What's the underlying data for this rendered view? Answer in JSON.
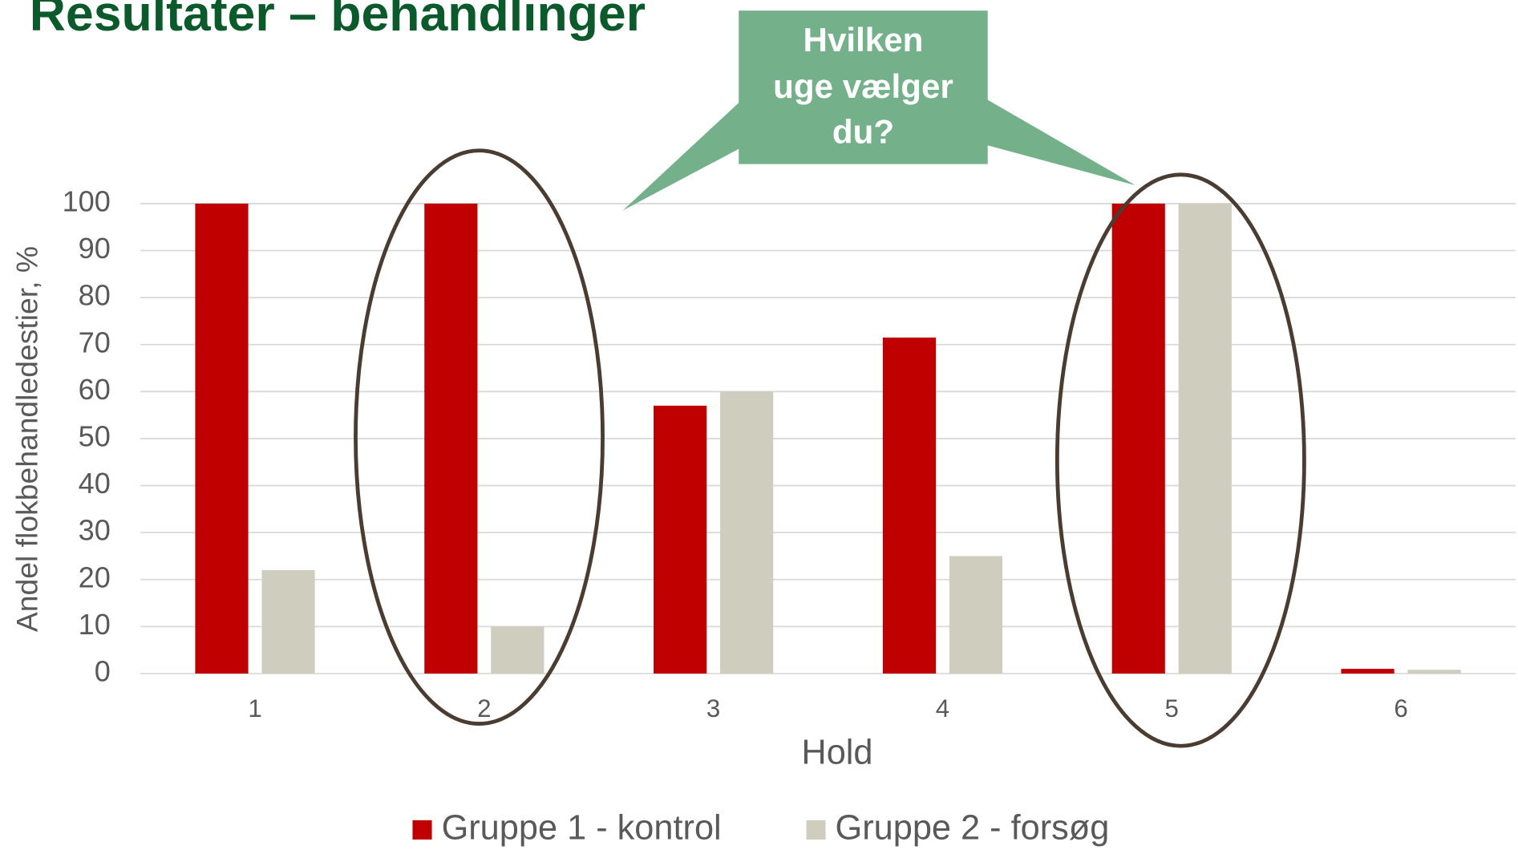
{
  "chart_data": {
    "type": "bar",
    "title": "Resultater – behandlinger",
    "annotation": [
      "Hvilken",
      "uge vælger",
      "du?"
    ],
    "xlabel": "Hold",
    "ylabel": "Andel flokbehandledestier, %",
    "categories": [
      "1",
      "2",
      "3",
      "4",
      "5",
      "6"
    ],
    "series": [
      {
        "name": "Gruppe 1 - kontrol",
        "color": "#c00000",
        "values": [
          100,
          100,
          57,
          71.5,
          100,
          1
        ]
      },
      {
        "name": "Gruppe 2 - forsøg",
        "color": "#cfcdbd",
        "values": [
          22,
          10,
          60,
          25,
          100,
          0.8
        ]
      }
    ],
    "ylim": [
      0,
      100
    ],
    "yticks": [
      0,
      10,
      20,
      30,
      40,
      50,
      60,
      70,
      80,
      90,
      100
    ],
    "grid": true,
    "legend": "bottom"
  }
}
